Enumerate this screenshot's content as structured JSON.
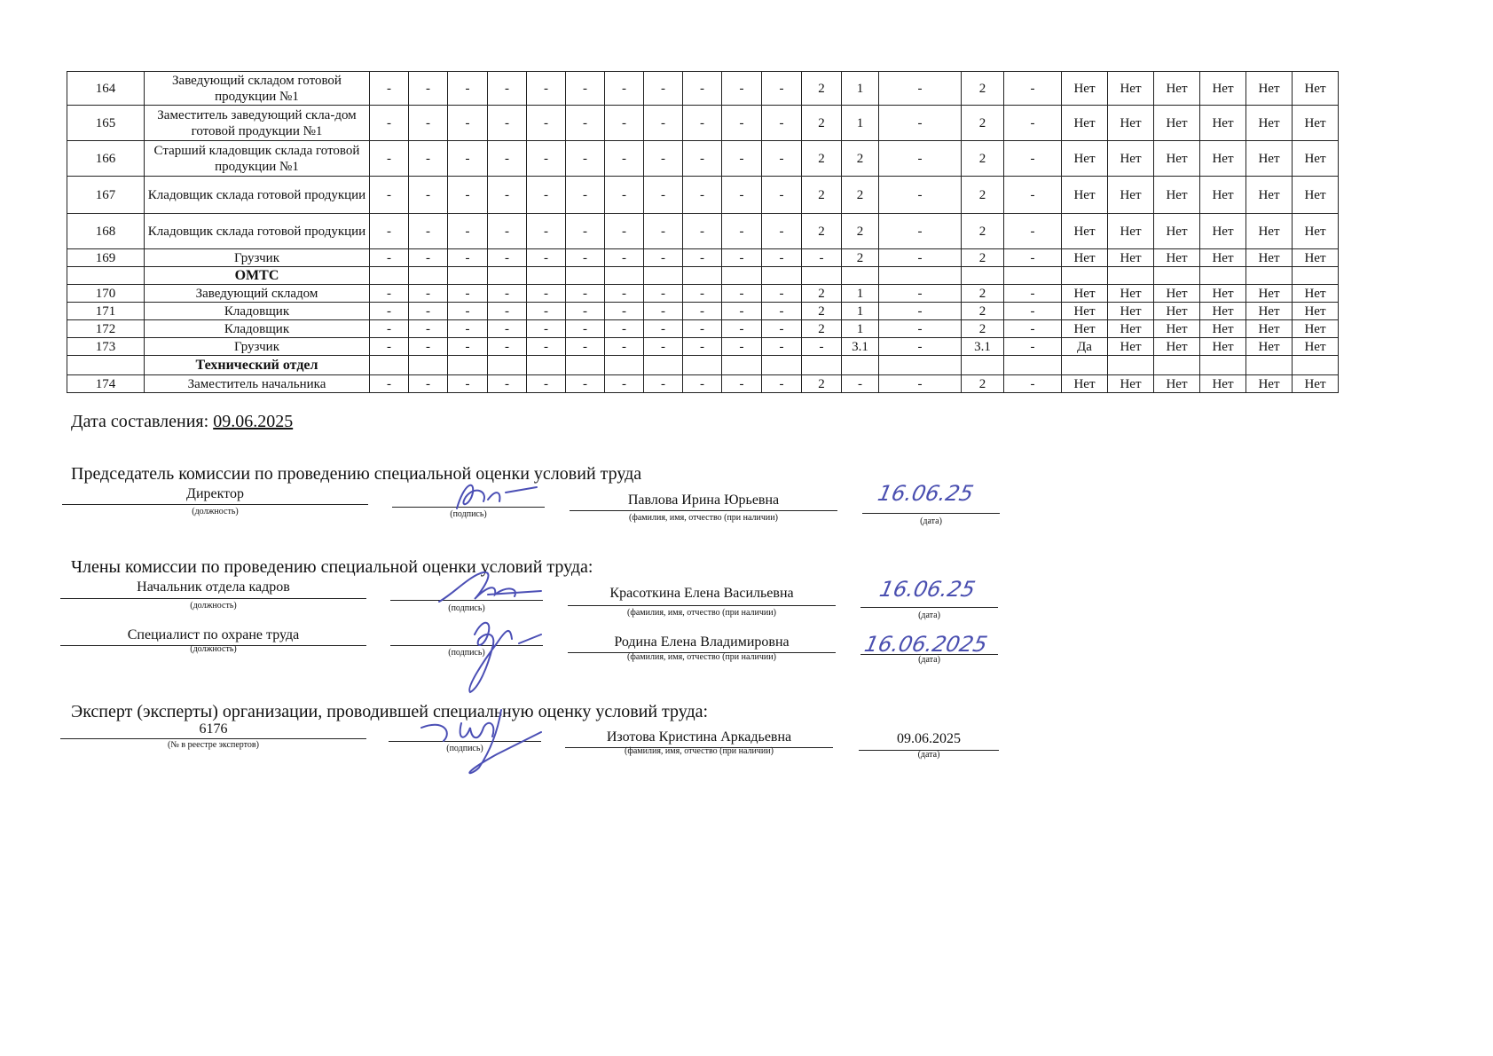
{
  "table": {
    "rows": [
      {
        "num": "164",
        "name": "Заведующий складом готовой продукции №1",
        "cells": [
          "-",
          "-",
          "-",
          "-",
          "-",
          "-",
          "-",
          "-",
          "-",
          "-",
          "-",
          "2",
          "1",
          "-",
          "2",
          "-",
          "Нет",
          "Нет",
          "Нет",
          "Нет",
          "Нет",
          "Нет"
        ]
      },
      {
        "num": "165",
        "name": "Заместитель заведующий скла-дом готовой продукции №1",
        "cells": [
          "-",
          "-",
          "-",
          "-",
          "-",
          "-",
          "-",
          "-",
          "-",
          "-",
          "-",
          "2",
          "1",
          "-",
          "2",
          "-",
          "Нет",
          "Нет",
          "Нет",
          "Нет",
          "Нет",
          "Нет"
        ]
      },
      {
        "num": "166",
        "name": "Старший кладовщик склада готовой продукции №1",
        "cells": [
          "-",
          "-",
          "-",
          "-",
          "-",
          "-",
          "-",
          "-",
          "-",
          "-",
          "-",
          "2",
          "2",
          "-",
          "2",
          "-",
          "Нет",
          "Нет",
          "Нет",
          "Нет",
          "Нет",
          "Нет"
        ]
      },
      {
        "num": "167",
        "name": "Кладовщик склада готовой продукции",
        "cells": [
          "-",
          "-",
          "-",
          "-",
          "-",
          "-",
          "-",
          "-",
          "-",
          "-",
          "-",
          "2",
          "2",
          "-",
          "2",
          "-",
          "Нет",
          "Нет",
          "Нет",
          "Нет",
          "Нет",
          "Нет"
        ]
      },
      {
        "num": "168",
        "name": "Кладовщик склада готовой продукции",
        "cells": [
          "-",
          "-",
          "-",
          "-",
          "-",
          "-",
          "-",
          "-",
          "-",
          "-",
          "-",
          "2",
          "2",
          "-",
          "2",
          "-",
          "Нет",
          "Нет",
          "Нет",
          "Нет",
          "Нет",
          "Нет"
        ]
      },
      {
        "num": "169",
        "name": "Грузчик",
        "cells": [
          "-",
          "-",
          "-",
          "-",
          "-",
          "-",
          "-",
          "-",
          "-",
          "-",
          "-",
          "-",
          "2",
          "-",
          "2",
          "-",
          "Нет",
          "Нет",
          "Нет",
          "Нет",
          "Нет",
          "Нет"
        ]
      },
      {
        "section": "ОМТС"
      },
      {
        "num": "170",
        "name": "Заведующий складом",
        "cells": [
          "-",
          "-",
          "-",
          "-",
          "-",
          "-",
          "-",
          "-",
          "-",
          "-",
          "-",
          "2",
          "1",
          "-",
          "2",
          "-",
          "Нет",
          "Нет",
          "Нет",
          "Нет",
          "Нет",
          "Нет"
        ]
      },
      {
        "num": "171",
        "name": "Кладовщик",
        "cells": [
          "-",
          "-",
          "-",
          "-",
          "-",
          "-",
          "-",
          "-",
          "-",
          "-",
          "-",
          "2",
          "1",
          "-",
          "2",
          "-",
          "Нет",
          "Нет",
          "Нет",
          "Нет",
          "Нет",
          "Нет"
        ]
      },
      {
        "num": "172",
        "name": "Кладовщик",
        "cells": [
          "-",
          "-",
          "-",
          "-",
          "-",
          "-",
          "-",
          "-",
          "-",
          "-",
          "-",
          "2",
          "1",
          "-",
          "2",
          "-",
          "Нет",
          "Нет",
          "Нет",
          "Нет",
          "Нет",
          "Нет"
        ]
      },
      {
        "num": "173",
        "name": "Грузчик",
        "cells": [
          "-",
          "-",
          "-",
          "-",
          "-",
          "-",
          "-",
          "-",
          "-",
          "-",
          "-",
          "-",
          "3.1",
          "-",
          "3.1",
          "-",
          "Да",
          "Нет",
          "Нет",
          "Нет",
          "Нет",
          "Нет"
        ]
      },
      {
        "section": "Технический отдел"
      },
      {
        "num": "174",
        "name": "Заместитель начальника",
        "cells": [
          "-",
          "-",
          "-",
          "-",
          "-",
          "-",
          "-",
          "-",
          "-",
          "-",
          "-",
          "2",
          "-",
          "-",
          "2",
          "-",
          "Нет",
          "Нет",
          "Нет",
          "Нет",
          "Нет",
          "Нет"
        ]
      }
    ]
  },
  "date_label": "Дата составления:",
  "date_value": "09.06.2025",
  "chairman": {
    "heading": "Председатель комиссии по проведению специальной оценки условий труда",
    "position": "Директор",
    "name": "Павлова Ирина Юрьевна",
    "date": "16.06.25"
  },
  "members_heading": "Члены комиссии по проведению специальной оценки условий труда:",
  "members": [
    {
      "position": "Начальник отдела кадров",
      "name": "Красоткина Елена Васильевна",
      "date": "16.06.25"
    },
    {
      "position": "Специалист по охране труда",
      "name": "Родина Елена Владимировна",
      "date": "16.06.2025"
    }
  ],
  "expert": {
    "heading": "Эксперт (эксперты) организации, проводившей специальную оценку условий труда:",
    "registry_number": "6176",
    "name": "Изотова Кристина Аркадьевна",
    "date": "09.06.2025"
  },
  "captions": {
    "position": "(должность)",
    "signature": "(подпись)",
    "fio": "(фамилия, имя, отчество (при наличии)",
    "date": "(дата)",
    "registry": "(№ в реестре экспертов)"
  },
  "colors": {
    "ink": "#111111",
    "signature_ink": "#4b4fb5"
  }
}
